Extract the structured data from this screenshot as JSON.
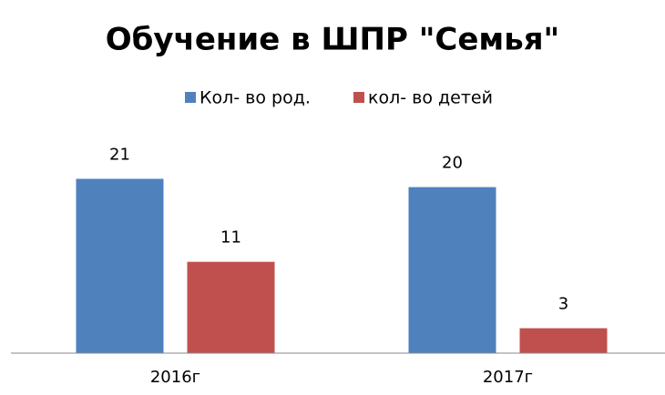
{
  "chart_data": {
    "type": "bar",
    "title": "Обучение в ШПР \"Семья\"",
    "categories": [
      "2016г",
      "2017г"
    ],
    "series": [
      {
        "name": "Кол- во род.",
        "color": "#4f81bd",
        "values": [
          21,
          20
        ]
      },
      {
        "name": "кол- во детей",
        "color": "#c0504d",
        "values": [
          11,
          3
        ]
      }
    ],
    "ylim": [
      0,
      25
    ],
    "legend": "top"
  }
}
